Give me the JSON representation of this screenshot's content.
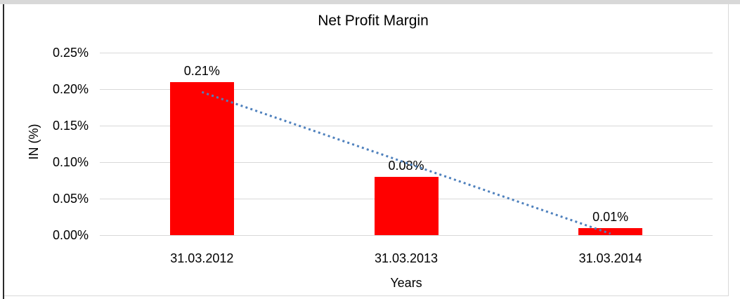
{
  "frame": {
    "background": "#ffffff",
    "top_border_color": "#d8d8d8",
    "left_border_color": "#2b2b2b",
    "edge_border_color": "#d9d9d9"
  },
  "chart_data": {
    "type": "bar",
    "title": "Net Profit Margin",
    "xlabel": "Years",
    "ylabel": "IN (%)",
    "categories": [
      "31.03.2012",
      "31.03.2013",
      "31.03.2014"
    ],
    "values": [
      0.21,
      0.08,
      0.01
    ],
    "data_labels": [
      "0.21%",
      "0.08%",
      "0.01%"
    ],
    "unit": "percent",
    "ylim": [
      0,
      0.25
    ],
    "y_ticks": [
      {
        "value": 0.0,
        "label": "0.00%"
      },
      {
        "value": 0.05,
        "label": "0.05%"
      },
      {
        "value": 0.1,
        "label": "0.10%"
      },
      {
        "value": 0.15,
        "label": "0.15%"
      },
      {
        "value": 0.2,
        "label": "0.20%"
      },
      {
        "value": 0.25,
        "label": "0.25%"
      }
    ],
    "grid": true,
    "grid_color": "#d9d9d9",
    "bar_color": "#ff0000",
    "legend_position": "none",
    "trendline": {
      "type": "linear",
      "style": "dotted",
      "color": "#4f81bd",
      "start_value": 0.196,
      "end_value": 0.002
    }
  }
}
